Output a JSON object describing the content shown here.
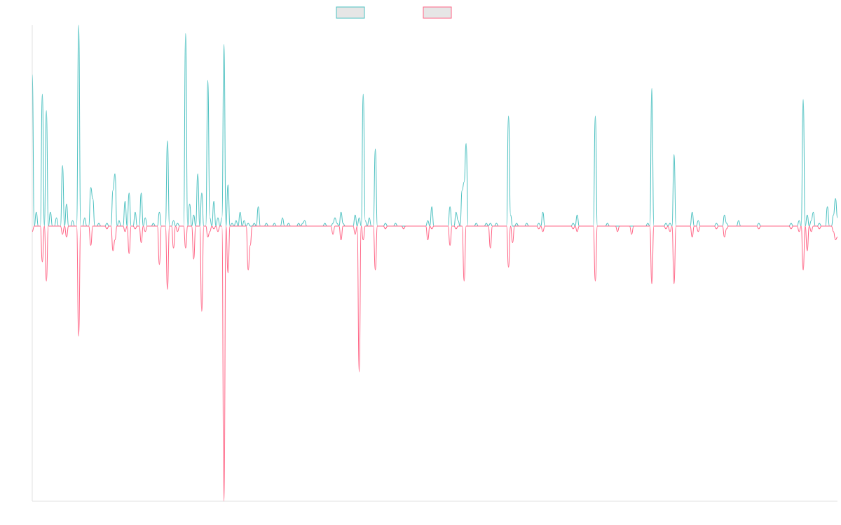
{
  "colors": {
    "series_a": "#4bc0c0",
    "series_b": "#ff6384",
    "legend_fill": "#e6e6e6",
    "axis": "#e0e0e0",
    "baseline": "#999999"
  },
  "chart_data": {
    "type": "line",
    "title": "",
    "xlabel": "",
    "ylabel": "",
    "grid": false,
    "legend": "top-center",
    "n_points": 400,
    "xlim": [
      0,
      399
    ],
    "ylim": [
      -1.0,
      0.73
    ],
    "series": [
      {
        "key": "a",
        "name": "",
        "color": "#4bc0c0",
        "spikes": [
          [
            0,
            0.55
          ],
          [
            2,
            0.05
          ],
          [
            5,
            0.48
          ],
          [
            7,
            0.42
          ],
          [
            9,
            0.05
          ],
          [
            12,
            0.03
          ],
          [
            15,
            0.22
          ],
          [
            17,
            0.08
          ],
          [
            20,
            0.02
          ],
          [
            23,
            0.73
          ],
          [
            26,
            0.03
          ],
          [
            29,
            0.14
          ],
          [
            30,
            0.1
          ],
          [
            33,
            0.01
          ],
          [
            37,
            0.01
          ],
          [
            40,
            0.13
          ],
          [
            41,
            0.19
          ],
          [
            43,
            0.02
          ],
          [
            46,
            0.09
          ],
          [
            48,
            0.12
          ],
          [
            51,
            0.05
          ],
          [
            54,
            0.12
          ],
          [
            56,
            0.03
          ],
          [
            60,
            0.01
          ],
          [
            63,
            0.05
          ],
          [
            67,
            0.31
          ],
          [
            70,
            0.02
          ],
          [
            72,
            0.01
          ],
          [
            76,
            0.7
          ],
          [
            78,
            0.08
          ],
          [
            80,
            0.04
          ],
          [
            82,
            0.19
          ],
          [
            84,
            0.12
          ],
          [
            87,
            0.53
          ],
          [
            88,
            0.03
          ],
          [
            90,
            0.09
          ],
          [
            92,
            0.03
          ],
          [
            94,
            0.03
          ],
          [
            95,
            0.66
          ],
          [
            97,
            0.15
          ],
          [
            99,
            0.01
          ],
          [
            101,
            0.02
          ],
          [
            103,
            0.05
          ],
          [
            105,
            0.02
          ],
          [
            107,
            0.01
          ],
          [
            110,
            0.01
          ],
          [
            112,
            0.07
          ],
          [
            116,
            0.01
          ],
          [
            120,
            0.01
          ],
          [
            124,
            0.03
          ],
          [
            127,
            0.01
          ],
          [
            132,
            0.01
          ],
          [
            134,
            0.01
          ],
          [
            135,
            0.02
          ],
          [
            145,
            0.01
          ],
          [
            149,
            0.01
          ],
          [
            150,
            0.03
          ],
          [
            151,
            0.01
          ],
          [
            153,
            0.05
          ],
          [
            154,
            0.01
          ],
          [
            160,
            0.04
          ],
          [
            162,
            0.03
          ],
          [
            164,
            0.48
          ],
          [
            165,
            0.02
          ],
          [
            167,
            0.03
          ],
          [
            170,
            0.28
          ],
          [
            175,
            0.01
          ],
          [
            180,
            0.01
          ],
          [
            196,
            0.02
          ],
          [
            198,
            0.07
          ],
          [
            207,
            0.07
          ],
          [
            210,
            0.05
          ],
          [
            211,
            0.02
          ],
          [
            213,
            0.13
          ],
          [
            214,
            0.16
          ],
          [
            215,
            0.3
          ],
          [
            220,
            0.01
          ],
          [
            225,
            0.01
          ],
          [
            227,
            0.01
          ],
          [
            230,
            0.01
          ],
          [
            236,
            0.4
          ],
          [
            237,
            0.04
          ],
          [
            240,
            0.01
          ],
          [
            245,
            0.01
          ],
          [
            251,
            0.01
          ],
          [
            253,
            0.05
          ],
          [
            268,
            0.01
          ],
          [
            270,
            0.04
          ],
          [
            279,
            0.4
          ],
          [
            285,
            0.01
          ],
          [
            305,
            0.01
          ],
          [
            307,
            0.5
          ],
          [
            314,
            0.01
          ],
          [
            316,
            0.01
          ],
          [
            318,
            0.26
          ],
          [
            327,
            0.05
          ],
          [
            330,
            0.02
          ],
          [
            339,
            0.01
          ],
          [
            343,
            0.04
          ],
          [
            344,
            0.01
          ],
          [
            350,
            0.02
          ],
          [
            360,
            0.01
          ],
          [
            376,
            0.01
          ],
          [
            380,
            0.02
          ],
          [
            382,
            0.46
          ],
          [
            384,
            0.04
          ],
          [
            386,
            0.02
          ],
          [
            387,
            0.05
          ],
          [
            390,
            0.01
          ],
          [
            394,
            0.07
          ],
          [
            397,
            0.04
          ],
          [
            398,
            0.1
          ],
          [
            399,
            0.03
          ]
        ]
      },
      {
        "key": "b",
        "name": "",
        "color": "#ff6384",
        "spikes": [
          [
            0,
            -0.02
          ],
          [
            5,
            -0.13
          ],
          [
            7,
            -0.2
          ],
          [
            15,
            -0.03
          ],
          [
            17,
            -0.04
          ],
          [
            23,
            -0.4
          ],
          [
            29,
            -0.07
          ],
          [
            37,
            -0.01
          ],
          [
            40,
            -0.09
          ],
          [
            41,
            -0.05
          ],
          [
            46,
            -0.02
          ],
          [
            48,
            -0.1
          ],
          [
            51,
            -0.01
          ],
          [
            54,
            -0.06
          ],
          [
            56,
            -0.02
          ],
          [
            63,
            -0.14
          ],
          [
            67,
            -0.23
          ],
          [
            70,
            -0.08
          ],
          [
            72,
            -0.02
          ],
          [
            76,
            -0.08
          ],
          [
            80,
            -0.12
          ],
          [
            84,
            -0.31
          ],
          [
            87,
            -0.04
          ],
          [
            88,
            -0.02
          ],
          [
            90,
            -0.01
          ],
          [
            92,
            -0.02
          ],
          [
            95,
            -1.0
          ],
          [
            97,
            -0.17
          ],
          [
            107,
            -0.16
          ],
          [
            108,
            -0.07
          ],
          [
            149,
            -0.03
          ],
          [
            153,
            -0.05
          ],
          [
            160,
            -0.03
          ],
          [
            162,
            -0.53
          ],
          [
            164,
            -0.05
          ],
          [
            170,
            -0.16
          ],
          [
            175,
            -0.01
          ],
          [
            184,
            -0.01
          ],
          [
            196,
            -0.05
          ],
          [
            198,
            -0.01
          ],
          [
            207,
            -0.07
          ],
          [
            210,
            -0.01
          ],
          [
            214,
            -0.2
          ],
          [
            227,
            -0.08
          ],
          [
            236,
            -0.15
          ],
          [
            238,
            -0.06
          ],
          [
            251,
            -0.01
          ],
          [
            253,
            -0.02
          ],
          [
            268,
            -0.01
          ],
          [
            270,
            -0.02
          ],
          [
            279,
            -0.2
          ],
          [
            290,
            -0.02
          ],
          [
            297,
            -0.03
          ],
          [
            307,
            -0.21
          ],
          [
            314,
            -0.01
          ],
          [
            316,
            -0.02
          ],
          [
            318,
            -0.21
          ],
          [
            327,
            -0.04
          ],
          [
            330,
            -0.02
          ],
          [
            339,
            -0.01
          ],
          [
            343,
            -0.04
          ],
          [
            344,
            -0.01
          ],
          [
            360,
            -0.01
          ],
          [
            376,
            -0.01
          ],
          [
            380,
            -0.02
          ],
          [
            382,
            -0.16
          ],
          [
            384,
            -0.09
          ],
          [
            386,
            -0.02
          ],
          [
            390,
            -0.01
          ],
          [
            397,
            -0.02
          ],
          [
            398,
            -0.05
          ],
          [
            399,
            -0.04
          ]
        ]
      }
    ]
  }
}
